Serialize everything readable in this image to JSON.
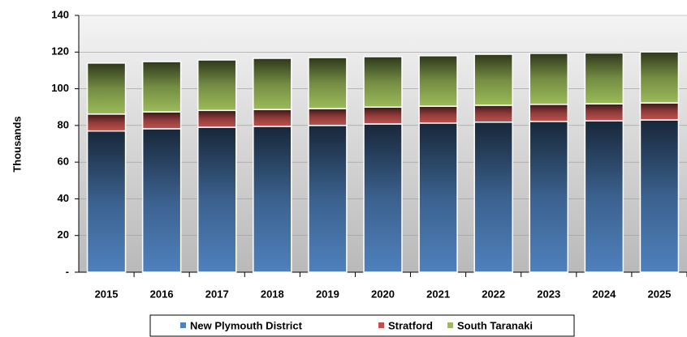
{
  "chart_data": {
    "type": "stacked-bar",
    "y_label": "Thousands",
    "categories": [
      "2015",
      "2016",
      "2017",
      "2018",
      "2019",
      "2020",
      "2021",
      "2022",
      "2023",
      "2024",
      "2025"
    ],
    "series": [
      {
        "name": "New Plymouth District",
        "color": "#4f81bd",
        "values": [
          77,
          78.2,
          79,
          79.5,
          80,
          80.8,
          81.3,
          81.8,
          82.2,
          82.5,
          83
        ]
      },
      {
        "name": "Stratford",
        "color": "#c0504d",
        "values": [
          9.2,
          9.2,
          9.2,
          9.2,
          9.2,
          9.2,
          9.2,
          9.2,
          9.3,
          9.3,
          9.3
        ]
      },
      {
        "name": "South Taranaki",
        "color": "#9bbb59",
        "values": [
          27.8,
          27.4,
          27.5,
          27.9,
          27.8,
          27.5,
          27.5,
          27.8,
          27.8,
          27.7,
          27.8
        ]
      }
    ],
    "ylim": [
      0,
      140
    ],
    "yticks": [
      {
        "value": 0,
        "label": "-"
      },
      20,
      40,
      60,
      80,
      100,
      120,
      140
    ],
    "grid": true,
    "legend": "bottom"
  }
}
